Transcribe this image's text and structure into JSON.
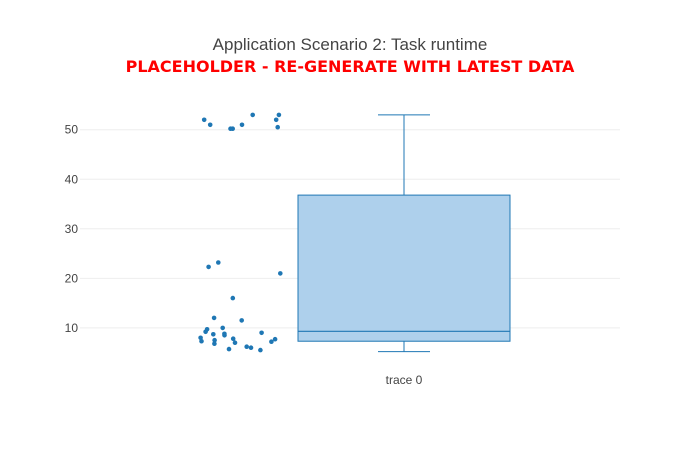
{
  "chart_data": {
    "type": "box",
    "title": "Application Scenario 2: Task runtime",
    "subtitle": "PLACEHOLDER - RE-GENERATE WITH LATEST DATA",
    "categories": [
      "trace 0"
    ],
    "yticks": [
      10,
      20,
      30,
      40,
      50
    ],
    "ylim": [
      2.5,
      56
    ],
    "grid": true,
    "box": {
      "name": "trace 0",
      "whisker_low": 5.2,
      "q1": 7.3,
      "median": 9.3,
      "q3": 36.8,
      "whisker_high": 53
    },
    "points": [
      52,
      53,
      52,
      50.2,
      50.5,
      51,
      50.2,
      51,
      53,
      23.2,
      22.3,
      21,
      16,
      12,
      11.5,
      10,
      9.7,
      9,
      8.5,
      8.8,
      8,
      7.7,
      7.5,
      7.2,
      7,
      6.8,
      6.2,
      5.7,
      5.5,
      6,
      9.2,
      8.7,
      7.8,
      7.3
    ],
    "colors": {
      "marker": "#1f77b4",
      "box_fill": "#aed0ec",
      "box_line": "#1f77b4"
    }
  }
}
